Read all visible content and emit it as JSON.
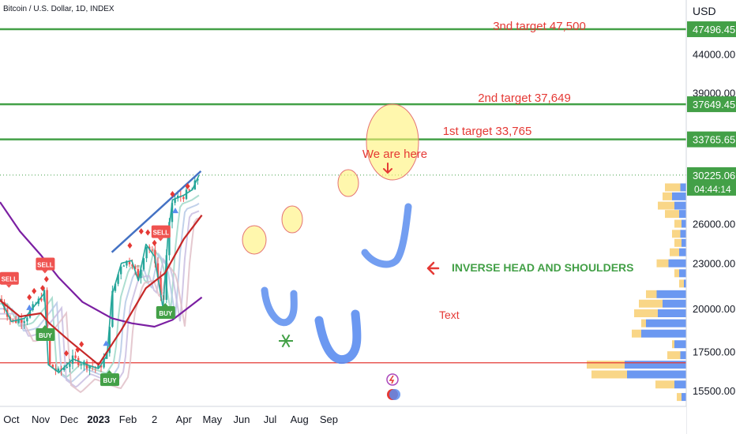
{
  "symbol_line": "Bitcoin / U.S. Dollar, 1D, INDEX",
  "currency": "USD",
  "chart_data": {
    "type": "line",
    "title": "",
    "xlabel": "",
    "ylabel": "",
    "y_scale": "log",
    "ylim": [
      14800,
      52000
    ],
    "x_ticks": [
      "Oct",
      "Nov",
      "Dec",
      "2023",
      "Feb",
      "2",
      "Apr",
      "May",
      "Jun",
      "Jul",
      "Aug",
      "Sep"
    ],
    "y_ticks": [
      "44000.00",
      "39000.00",
      "26000.00",
      "23000.00",
      "20000.00",
      "17500.00",
      "15500.00"
    ],
    "price_labels": [
      {
        "value": "47496.45",
        "color": "#43a047"
      },
      {
        "value": "37649.45",
        "color": "#43a047"
      },
      {
        "value": "33765.65",
        "color": "#43a047"
      },
      {
        "value": "30225.06",
        "color": "#43a047"
      }
    ],
    "countdown": "04:44:14",
    "horizontal_levels": [
      {
        "value": 47496.45,
        "color": "#43a047"
      },
      {
        "value": 37649.45,
        "color": "#43a047"
      },
      {
        "value": 33765.65,
        "color": "#43a047"
      },
      {
        "value": 16900,
        "color": "#e53935"
      }
    ],
    "annotations": [
      {
        "text": "3nd target 47,500",
        "color": "#e53935"
      },
      {
        "text": "2nd target 37,649",
        "color": "#e53935"
      },
      {
        "text": "1st target 33,765",
        "color": "#e53935"
      },
      {
        "text": "We are here",
        "color": "#e53935"
      },
      {
        "text": "INVERSE HEAD AND SHOULDERS",
        "color": "#43a047"
      },
      {
        "text": "Text",
        "color": "#e53935"
      }
    ],
    "signals": [
      {
        "label": "SELL",
        "kind": "sell",
        "date": "2022-09-28",
        "price": 21900
      },
      {
        "label": "SELL",
        "kind": "sell",
        "date": "2022-11-05",
        "price": 22900
      },
      {
        "label": "BUY",
        "kind": "buy",
        "date": "2022-11-05",
        "price": 18400
      },
      {
        "label": "BUY",
        "kind": "buy",
        "date": "2023-01-12",
        "price": 16000
      },
      {
        "label": "SELL",
        "kind": "sell",
        "date": "2023-03-07",
        "price": 25300
      },
      {
        "label": "BUY",
        "kind": "buy",
        "date": "2023-03-12",
        "price": 19700
      }
    ],
    "series": [
      {
        "name": "",
        "color": "#26a69a",
        "x": [
          "2022-09-19",
          "2022-10-01",
          "2022-10-15",
          "2022-10-30",
          "2022-11-05",
          "2022-11-09",
          "2022-11-20",
          "2022-12-05",
          "2022-12-20",
          "2023-01-01",
          "2023-01-10",
          "2023-01-15",
          "2023-01-25",
          "2023-02-05",
          "2023-02-12",
          "2023-02-20",
          "2023-03-01",
          "2023-03-10",
          "2023-03-15",
          "2023-03-20",
          "2023-04-01",
          "2023-04-10",
          "2023-04-17"
        ],
        "values": [
          20600,
          19200,
          19400,
          20500,
          21000,
          16800,
          16400,
          17100,
          16800,
          16600,
          17300,
          20800,
          23000,
          23200,
          21800,
          24400,
          23500,
          20000,
          24800,
          28000,
          28400,
          28900,
          30225
        ]
      },
      {
        "name": "",
        "color": "#7b1fa2",
        "x": [
          "2022-09-19",
          "2022-10-10",
          "2022-11-01",
          "2022-11-20",
          "2022-12-15",
          "2023-01-15",
          "2023-02-05",
          "2023-03-01",
          "2023-03-20",
          "2023-04-20"
        ],
        "values": [
          27800,
          25400,
          23600,
          22000,
          20400,
          19400,
          19100,
          18900,
          19300,
          20700
        ]
      },
      {
        "name": "",
        "color": "#c62828",
        "x": [
          "2022-09-19",
          "2022-10-10",
          "2022-11-01",
          "2022-11-10",
          "2022-12-01",
          "2023-01-01",
          "2023-01-25",
          "2023-02-20",
          "2023-03-12",
          "2023-04-01",
          "2023-04-20"
        ],
        "values": [
          20500,
          19500,
          19700,
          19100,
          18100,
          16800,
          18700,
          21300,
          22300,
          24800,
          26700
        ]
      }
    ],
    "trendline": {
      "x": [
        "2023-01-15",
        "2023-04-19"
      ],
      "values": [
        23800,
        30600
      ],
      "color": "#4472c4"
    },
    "volume_profile": [
      {
        "price": 29100,
        "left": 0.05,
        "right": 0.18
      },
      {
        "price": 28300,
        "left": 0.12,
        "right": 0.2
      },
      {
        "price": 27500,
        "left": 0.1,
        "right": 0.24
      },
      {
        "price": 26800,
        "left": 0.06,
        "right": 0.18
      },
      {
        "price": 26000,
        "left": 0.04,
        "right": 0.1
      },
      {
        "price": 25200,
        "left": 0.05,
        "right": 0.12
      },
      {
        "price": 24500,
        "left": 0.04,
        "right": 0.1
      },
      {
        "price": 23800,
        "left": 0.06,
        "right": 0.14
      },
      {
        "price": 23000,
        "left": 0.15,
        "right": 0.25
      },
      {
        "price": 22300,
        "left": 0.06,
        "right": 0.1
      },
      {
        "price": 21600,
        "left": 0.02,
        "right": 0.06
      },
      {
        "price": 20900,
        "left": 0.25,
        "right": 0.34
      },
      {
        "price": 20300,
        "left": 0.2,
        "right": 0.4
      },
      {
        "price": 19700,
        "left": 0.24,
        "right": 0.44
      },
      {
        "price": 19100,
        "left": 0.34,
        "right": 0.38
      },
      {
        "price": 18500,
        "left": 0.38,
        "right": 0.46
      },
      {
        "price": 17900,
        "left": 0.1,
        "right": 0.12
      },
      {
        "price": 17300,
        "left": 0.05,
        "right": 0.16
      },
      {
        "price": 16800,
        "left": 0.52,
        "right": 0.84
      },
      {
        "price": 16300,
        "left": 0.5,
        "right": 0.8
      },
      {
        "price": 15800,
        "left": 0.1,
        "right": 0.26
      },
      {
        "price": 15200,
        "left": 0.04,
        "right": 0.08
      }
    ]
  }
}
